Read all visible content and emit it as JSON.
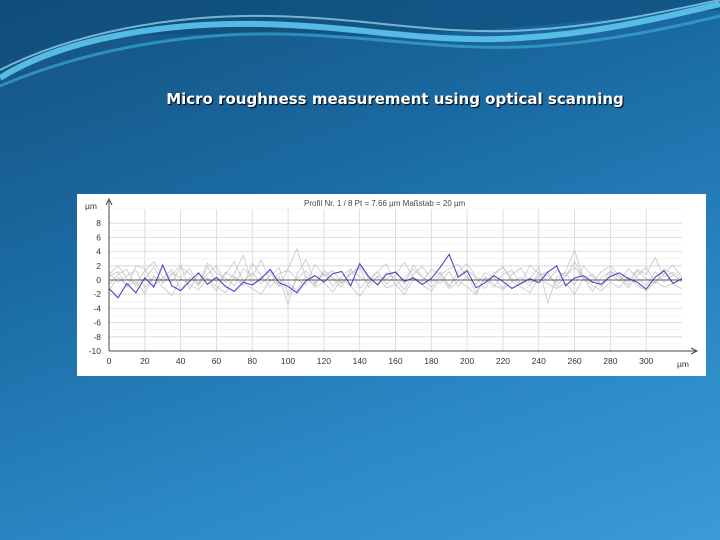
{
  "slide": {
    "title": "Micro roughness measurement using optical scanning",
    "background_colors": [
      "#14517f",
      "#3a9bd6"
    ]
  },
  "chart_data": {
    "type": "line",
    "header": "Profil Nr. 1 / 8 Pt = 7.66 µm  Maßstab = 20 µm",
    "ylabel": "µm",
    "xlabel": "µm",
    "xlim": [
      0,
      320
    ],
    "ylim": [
      -10,
      10
    ],
    "x_ticks": [
      0,
      20,
      40,
      60,
      80,
      100,
      120,
      140,
      160,
      180,
      200,
      220,
      240,
      260,
      280,
      300
    ],
    "y_ticks": [
      8,
      6,
      4,
      2,
      0,
      -2,
      -4,
      -6,
      -8,
      -10
    ],
    "grid": true,
    "highlight_color": "#4a4ac8",
    "background_color": "#bdbdbd",
    "series": [
      {
        "x": [
          0,
          5,
          10,
          15,
          20,
          25,
          30,
          35,
          40,
          45,
          50,
          55,
          60,
          65,
          70,
          75,
          80,
          85,
          90,
          95,
          100,
          105,
          110,
          115,
          120,
          125,
          130,
          135,
          140,
          145,
          150,
          155,
          160,
          165,
          170,
          175,
          180,
          185,
          190,
          195,
          200,
          205,
          210,
          215,
          220,
          225,
          230,
          235,
          240,
          245,
          250,
          255,
          260,
          265,
          270,
          275,
          280,
          285,
          290,
          295,
          300,
          305,
          310,
          315,
          320
        ],
        "y": [
          -1.2,
          -2.5,
          -0.5,
          -1.8,
          0.3,
          -1.0,
          2.1,
          -0.8,
          -1.5,
          -0.2,
          1.0,
          -0.6,
          0.4,
          -0.9,
          -1.6,
          -0.3,
          -0.7,
          0.2,
          1.5,
          -0.4,
          -0.9,
          -1.8,
          -0.1,
          0.6,
          -0.3,
          0.9,
          1.2,
          -0.8,
          2.3,
          0.5,
          -0.7,
          0.8,
          1.1,
          -0.2,
          0.3,
          -0.6,
          0.2,
          1.8,
          3.6,
          0.4,
          1.3,
          -1.1,
          -0.4,
          0.6,
          -0.2,
          -1.2,
          -0.5,
          0.2,
          -0.4,
          1.1,
          2.0,
          -0.8,
          0.3,
          0.6,
          -0.3,
          -0.6,
          0.5,
          1.0,
          0.2,
          -0.3,
          -1.3,
          0.4,
          1.3,
          -0.5,
          0.2
        ],
        "color": "#4a4ac8"
      },
      {
        "x": [
          0,
          5,
          10,
          15,
          20,
          25,
          30,
          35,
          40,
          45,
          50,
          55,
          60,
          65,
          70,
          75,
          80,
          85,
          90,
          95,
          100,
          105,
          110,
          115,
          120,
          125,
          130,
          135,
          140,
          145,
          150,
          155,
          160,
          165,
          170,
          175,
          180,
          185,
          190,
          195,
          200,
          205,
          210,
          215,
          220,
          225,
          230,
          235,
          240,
          245,
          250,
          255,
          260,
          265,
          270,
          275,
          280,
          285,
          290,
          295,
          300,
          305,
          310,
          315,
          320
        ],
        "y": [
          0.5,
          1.2,
          -1.0,
          2.0,
          1.6,
          -0.8,
          0.3,
          1.5,
          -1.5,
          0.4,
          -0.8,
          1.9,
          -0.3,
          0.8,
          2.6,
          -0.2,
          1.0,
          -0.5,
          0.6,
          1.7,
          -2.2,
          0.2,
          1.3,
          -0.6,
          0.9,
          0.1,
          -1.0,
          1.4,
          0.5,
          -0.4,
          1.2,
          2.3,
          -0.8,
          0.3,
          1.5,
          0.4,
          -1.0,
          0.7,
          1.6,
          2.2,
          0.3,
          -0.6,
          1.0,
          0.4,
          -1.2,
          0.8,
          1.7,
          -0.4,
          0.5,
          1.2,
          -0.9,
          0.6,
          1.8,
          0.2,
          -1.6,
          0.4,
          1.1,
          0.6,
          -0.7,
          1.3,
          0.2,
          -0.5,
          1.6,
          0.8,
          -0.3
        ],
        "color": "#bdbdbd"
      },
      {
        "x": [
          0,
          5,
          10,
          15,
          20,
          25,
          30,
          35,
          40,
          45,
          50,
          55,
          60,
          65,
          70,
          75,
          80,
          85,
          90,
          95,
          100,
          105,
          110,
          115,
          120,
          125,
          130,
          135,
          140,
          145,
          150,
          155,
          160,
          165,
          170,
          175,
          180,
          185,
          190,
          195,
          200,
          205,
          210,
          215,
          220,
          225,
          230,
          235,
          240,
          245,
          250,
          255,
          260,
          265,
          270,
          275,
          280,
          285,
          290,
          295,
          300,
          305,
          310,
          315,
          320
        ],
        "y": [
          -0.6,
          0.8,
          1.5,
          -0.9,
          0.2,
          1.8,
          -0.5,
          0.6,
          2.2,
          -1.3,
          0.9,
          0.1,
          -1.6,
          1.1,
          0.3,
          -0.8,
          2.4,
          0.6,
          -1.0,
          0.5,
          -3.5,
          0.8,
          2.9,
          -0.4,
          1.0,
          -0.9,
          0.5,
          1.6,
          -1.2,
          0.3,
          -0.6,
          1.0,
          0.2,
          -1.4,
          0.8,
          1.9,
          0.1,
          -0.5,
          1.2,
          -0.9,
          0.6,
          -1.8,
          0.3,
          -1.0,
          0.8,
          1.4,
          -0.6,
          0.2,
          1.8,
          -3.2,
          0.4,
          1.0,
          -0.7,
          2.0,
          0.5,
          -1.0,
          0.9,
          -0.2,
          1.6,
          0.4,
          -0.8,
          1.2,
          -0.3,
          0.7,
          -0.1
        ],
        "color": "#bdbdbd"
      },
      {
        "x": [
          0,
          5,
          10,
          15,
          20,
          25,
          30,
          35,
          40,
          45,
          50,
          55,
          60,
          65,
          70,
          75,
          80,
          85,
          90,
          95,
          100,
          105,
          110,
          115,
          120,
          125,
          130,
          135,
          140,
          145,
          150,
          155,
          160,
          165,
          170,
          175,
          180,
          185,
          190,
          195,
          200,
          205,
          210,
          215,
          220,
          225,
          230,
          235,
          240,
          245,
          250,
          255,
          260,
          265,
          270,
          275,
          280,
          285,
          290,
          295,
          300,
          305,
          310,
          315,
          320
        ],
        "y": [
          1.0,
          -0.3,
          0.6,
          1.4,
          -1.1,
          0.5,
          -0.2,
          1.0,
          0.3,
          1.6,
          -0.6,
          0.8,
          2.0,
          -0.4,
          0.9,
          3.5,
          -0.7,
          0.4,
          1.2,
          -0.9,
          1.6,
          4.4,
          0.2,
          -0.8,
          1.4,
          0.3,
          -0.5,
          0.9,
          1.7,
          -1.0,
          0.6,
          0.1,
          1.3,
          -0.6,
          2.1,
          0.4,
          -0.3,
          1.1,
          -0.8,
          0.5,
          1.5,
          0.2,
          -1.2,
          0.7,
          1.9,
          -0.2,
          0.4,
          -0.9,
          1.0,
          0.6,
          -0.4,
          1.3,
          4.2,
          0.2,
          0.8,
          -0.6,
          1.4,
          0.3,
          -1.1,
          0.6,
          1.8,
          -0.4,
          0.9,
          2.1,
          0.4
        ],
        "color": "#bdbdbd"
      },
      {
        "x": [
          0,
          5,
          10,
          15,
          20,
          25,
          30,
          35,
          40,
          45,
          50,
          55,
          60,
          65,
          70,
          75,
          80,
          85,
          90,
          95,
          100,
          105,
          110,
          115,
          120,
          125,
          130,
          135,
          140,
          145,
          150,
          155,
          160,
          165,
          170,
          175,
          180,
          185,
          190,
          195,
          200,
          205,
          210,
          215,
          220,
          225,
          230,
          235,
          240,
          245,
          250,
          255,
          260,
          265,
          270,
          275,
          280,
          285,
          290,
          295,
          300,
          305,
          310,
          315,
          320
        ],
        "y": [
          -1.5,
          0.4,
          -0.8,
          -0.2,
          -1.9,
          0.6,
          -1.0,
          -2.2,
          0.2,
          -0.6,
          -1.4,
          0.3,
          -0.9,
          -1.8,
          0.5,
          -0.4,
          -1.2,
          -2.0,
          0.1,
          -0.8,
          -0.4,
          -1.5,
          0.6,
          -1.0,
          -0.3,
          -1.7,
          0.2,
          -0.9,
          -2.3,
          -0.5,
          0.4,
          -1.1,
          -0.6,
          -2.0,
          0.1,
          -0.7,
          -1.6,
          0.3,
          -1.2,
          -0.2,
          -0.9,
          -2.1,
          0.5,
          -0.6,
          -1.4,
          -0.2,
          -1.0,
          -1.8,
          0.3,
          -0.5,
          -1.2,
          -0.4,
          -2.0,
          0.2,
          -0.8,
          -1.5,
          -0.3,
          -1.1,
          0.4,
          -0.7,
          -1.6,
          -0.2,
          -1.0,
          -0.5,
          -1.3
        ],
        "color": "#bdbdbd"
      },
      {
        "x": [
          0,
          5,
          10,
          15,
          20,
          25,
          30,
          35,
          40,
          45,
          50,
          55,
          60,
          65,
          70,
          75,
          80,
          85,
          90,
          95,
          100,
          105,
          110,
          115,
          120,
          125,
          130,
          135,
          140,
          145,
          150,
          155,
          160,
          165,
          170,
          175,
          180,
          185,
          190,
          195,
          200,
          205,
          210,
          215,
          220,
          225,
          230,
          235,
          240,
          245,
          250,
          255,
          260,
          265,
          270,
          275,
          280,
          285,
          290,
          295,
          300,
          305,
          310,
          315,
          320
        ],
        "y": [
          0.8,
          2.0,
          0.2,
          -0.6,
          1.3,
          2.6,
          0.4,
          -0.3,
          1.8,
          0.9,
          -0.5,
          2.4,
          1.0,
          0.3,
          -0.8,
          1.6,
          0.5,
          2.8,
          -0.2,
          0.9,
          1.4,
          0.1,
          -0.7,
          2.2,
          0.6,
          1.3,
          -0.4,
          0.8,
          2.0,
          0.2,
          1.1,
          -0.6,
          0.7,
          2.5,
          0.3,
          -0.2,
          1.5,
          0.8,
          -0.9,
          1.2,
          2.3,
          0.4,
          -0.3,
          1.0,
          1.8,
          0.2,
          -0.6,
          2.1,
          0.9,
          -0.1,
          1.4,
          0.5,
          2.6,
          0.3,
          -0.4,
          1.2,
          2.0,
          0.6,
          -0.2,
          1.5,
          0.8,
          3.2,
          0.4,
          1.1,
          0.2
        ],
        "color": "#bdbdbd"
      }
    ]
  }
}
